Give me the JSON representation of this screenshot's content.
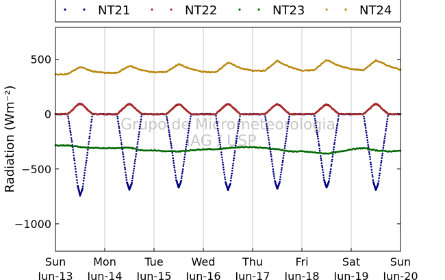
{
  "chart_data": {
    "type": "scatter",
    "ylabel": "Radiation (Wm⁻²)",
    "ylim": [
      -1250,
      790
    ],
    "xlim": [
      0,
      7
    ],
    "y_ticks": [
      500,
      0,
      -500,
      -1000
    ],
    "y_tick_labels": [
      "500",
      "0",
      "−500",
      "−1000"
    ],
    "x_ticks": [
      0,
      1,
      2,
      3,
      4,
      5,
      6,
      7
    ],
    "x_tick_labels": [
      [
        "Sun",
        "Jun-13"
      ],
      [
        "Mon",
        "Jun-14"
      ],
      [
        "Tue",
        "Jun-15"
      ],
      [
        "Wed",
        "Jun-16"
      ],
      [
        "Thu",
        "Jun-17"
      ],
      [
        "Fri",
        "Jun-18"
      ],
      [
        "Sat",
        "Jun-19"
      ],
      [
        "Sun",
        "Jun-20"
      ]
    ],
    "grid": "vertical",
    "legend_position": "top",
    "watermark": [
      "Grupo de Micrometeorologia",
      "IAG / USP"
    ],
    "series": [
      {
        "name": "NT21",
        "color": "#000080",
        "x": [
          0,
          0.25,
          0.35,
          0.45,
          0.5,
          0.55,
          0.65,
          0.75,
          1.0,
          1.25,
          1.35,
          1.45,
          1.5,
          1.55,
          1.65,
          1.75,
          2.0,
          2.25,
          2.35,
          2.45,
          2.5,
          2.55,
          2.65,
          2.75,
          3.0,
          3.25,
          3.35,
          3.45,
          3.5,
          3.55,
          3.65,
          3.75,
          4.0,
          4.25,
          4.35,
          4.45,
          4.5,
          4.55,
          4.65,
          4.75,
          5.0,
          5.25,
          5.35,
          5.45,
          5.5,
          5.55,
          5.65,
          5.75,
          6.0,
          6.25,
          6.35,
          6.45,
          6.5,
          6.55,
          6.65,
          6.75,
          7.0
        ],
        "y": [
          0,
          0,
          -300,
          -650,
          -740,
          -680,
          -350,
          0,
          0,
          0,
          -300,
          -620,
          -690,
          -630,
          -320,
          0,
          0,
          0,
          -290,
          -600,
          -670,
          -610,
          -300,
          0,
          0,
          0,
          -300,
          -620,
          -690,
          -630,
          -310,
          0,
          0,
          0,
          -300,
          -610,
          -680,
          -620,
          -310,
          0,
          0,
          0,
          -290,
          -600,
          -670,
          -610,
          -300,
          0,
          0,
          0,
          -300,
          -620,
          -690,
          -630,
          -310,
          0,
          0
        ]
      },
      {
        "name": "NT22",
        "color": "#a52a2a",
        "x": [
          0,
          0.25,
          0.35,
          0.45,
          0.5,
          0.55,
          0.65,
          0.75,
          1.0,
          1.25,
          1.35,
          1.45,
          1.5,
          1.55,
          1.65,
          1.75,
          2.0,
          2.25,
          2.35,
          2.45,
          2.5,
          2.55,
          2.65,
          2.75,
          3.0,
          3.25,
          3.35,
          3.45,
          3.5,
          3.55,
          3.65,
          3.75,
          4.0,
          4.25,
          4.35,
          4.45,
          4.5,
          4.55,
          4.65,
          4.75,
          5.0,
          5.25,
          5.35,
          5.45,
          5.5,
          5.55,
          5.65,
          5.75,
          6.0,
          6.25,
          6.35,
          6.45,
          6.5,
          6.55,
          6.65,
          6.75,
          7.0
        ],
        "y": [
          0,
          0,
          40,
          85,
          95,
          85,
          40,
          0,
          0,
          0,
          40,
          82,
          92,
          82,
          40,
          0,
          0,
          0,
          38,
          80,
          88,
          80,
          38,
          0,
          0,
          0,
          40,
          82,
          92,
          82,
          40,
          0,
          0,
          0,
          40,
          80,
          90,
          80,
          40,
          0,
          0,
          0,
          38,
          78,
          86,
          78,
          38,
          0,
          0,
          0,
          40,
          82,
          92,
          82,
          40,
          0,
          0
        ]
      },
      {
        "name": "NT23",
        "color": "#006400",
        "x": [
          0,
          0.25,
          0.5,
          0.75,
          1.0,
          1.25,
          1.5,
          1.75,
          2.0,
          2.25,
          2.5,
          2.75,
          3.0,
          3.25,
          3.5,
          3.75,
          4.0,
          4.25,
          4.5,
          4.75,
          5.0,
          5.25,
          5.5,
          5.75,
          6.0,
          6.25,
          6.5,
          6.75,
          7.0
        ],
        "y": [
          -285,
          -285,
          -300,
          -310,
          -310,
          -310,
          -305,
          -330,
          -330,
          -340,
          -340,
          -330,
          -320,
          -320,
          -310,
          -300,
          -300,
          -310,
          -320,
          -340,
          -340,
          -350,
          -360,
          -345,
          -320,
          -310,
          -330,
          -340,
          -335
        ]
      },
      {
        "name": "NT24",
        "color": "#b8860b",
        "x": [
          0,
          0.25,
          0.5,
          0.75,
          1.0,
          1.25,
          1.5,
          1.75,
          2.0,
          2.25,
          2.5,
          2.75,
          3.0,
          3.25,
          3.5,
          3.75,
          4.0,
          4.25,
          4.5,
          4.75,
          5.0,
          5.25,
          5.5,
          5.75,
          6.0,
          6.25,
          6.5,
          6.75,
          7.0
        ],
        "y": [
          360,
          365,
          430,
          390,
          375,
          375,
          440,
          400,
          380,
          385,
          455,
          410,
          385,
          380,
          470,
          420,
          395,
          395,
          485,
          430,
          395,
          400,
          495,
          440,
          410,
          400,
          490,
          440,
          405
        ]
      }
    ]
  }
}
